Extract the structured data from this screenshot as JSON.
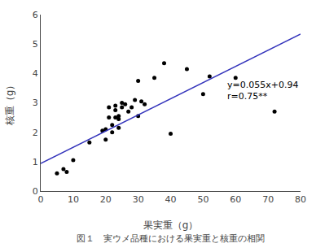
{
  "chart_data": {
    "type": "scatter",
    "xlabel": "果実重（g）",
    "ylabel": "核重（g）",
    "caption": "図１　実ウメ品種における果実重と核重の相関",
    "series": [
      {
        "type": "scatter",
        "color": "#000000",
        "x": [
          5,
          7,
          8,
          10,
          15,
          19,
          20,
          20,
          21,
          21,
          22,
          22,
          23,
          23,
          23,
          24,
          24,
          24,
          25,
          25,
          26,
          27,
          28,
          29,
          30,
          30,
          31,
          32,
          35,
          38,
          40,
          45,
          50,
          52,
          60,
          72
        ],
        "values": [
          0.6,
          0.75,
          0.65,
          1.05,
          1.65,
          2.05,
          2.1,
          1.75,
          2.85,
          2.5,
          2.25,
          2.0,
          2.9,
          2.75,
          2.5,
          2.55,
          2.45,
          2.15,
          2.85,
          3.0,
          2.95,
          2.7,
          2.85,
          3.1,
          2.55,
          3.75,
          3.05,
          2.95,
          3.85,
          4.35,
          1.95,
          4.15,
          3.3,
          3.9,
          3.85,
          2.7
        ]
      },
      {
        "type": "line",
        "color": "#3333bb",
        "x": [
          0,
          80
        ],
        "values": [
          0.94,
          5.34
        ]
      }
    ],
    "annotations": [
      {
        "text": [
          "y=0.055x+0.94",
          "r=0.75**"
        ],
        "x": 57,
        "y": 3.85
      }
    ],
    "xlim": [
      0,
      80
    ],
    "ylim": [
      0,
      6
    ],
    "xticks": [
      0,
      10,
      20,
      30,
      40,
      50,
      60,
      70,
      80
    ],
    "yticks": [
      0,
      1,
      2,
      3,
      4,
      5,
      6
    ],
    "grid": false
  }
}
